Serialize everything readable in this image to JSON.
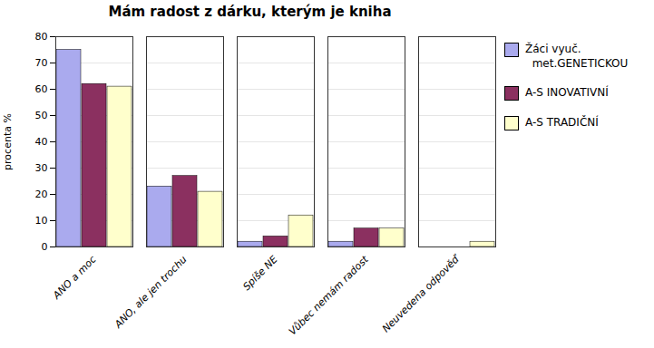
{
  "chart_data": {
    "type": "bar",
    "title": "Mám radost z dárku, kterým  je kniha",
    "ylabel": "procenta %",
    "categories": [
      "ANO a moc",
      "ANO, ale jen trochu",
      "Spíše NE",
      "Vůbec nemám radost",
      "Neuvedena odpověď"
    ],
    "series": [
      {
        "name": "Žáci vyuč.\n  met.GENETICKOU",
        "color": "#aaaaee",
        "values": [
          75,
          23,
          2,
          2,
          0
        ]
      },
      {
        "name": "A-S INOVATIVNÍ",
        "color": "#8b3060",
        "values": [
          62,
          27,
          4,
          7,
          0
        ]
      },
      {
        "name": "A-S TRADIČNÍ",
        "color": "#ffffcc",
        "values": [
          61,
          21,
          12,
          7,
          2
        ]
      }
    ],
    "ylim": [
      0,
      80
    ],
    "yticks": [
      0,
      10,
      20,
      30,
      40,
      50,
      60,
      70,
      80
    ],
    "grid": true,
    "legend": "right"
  }
}
